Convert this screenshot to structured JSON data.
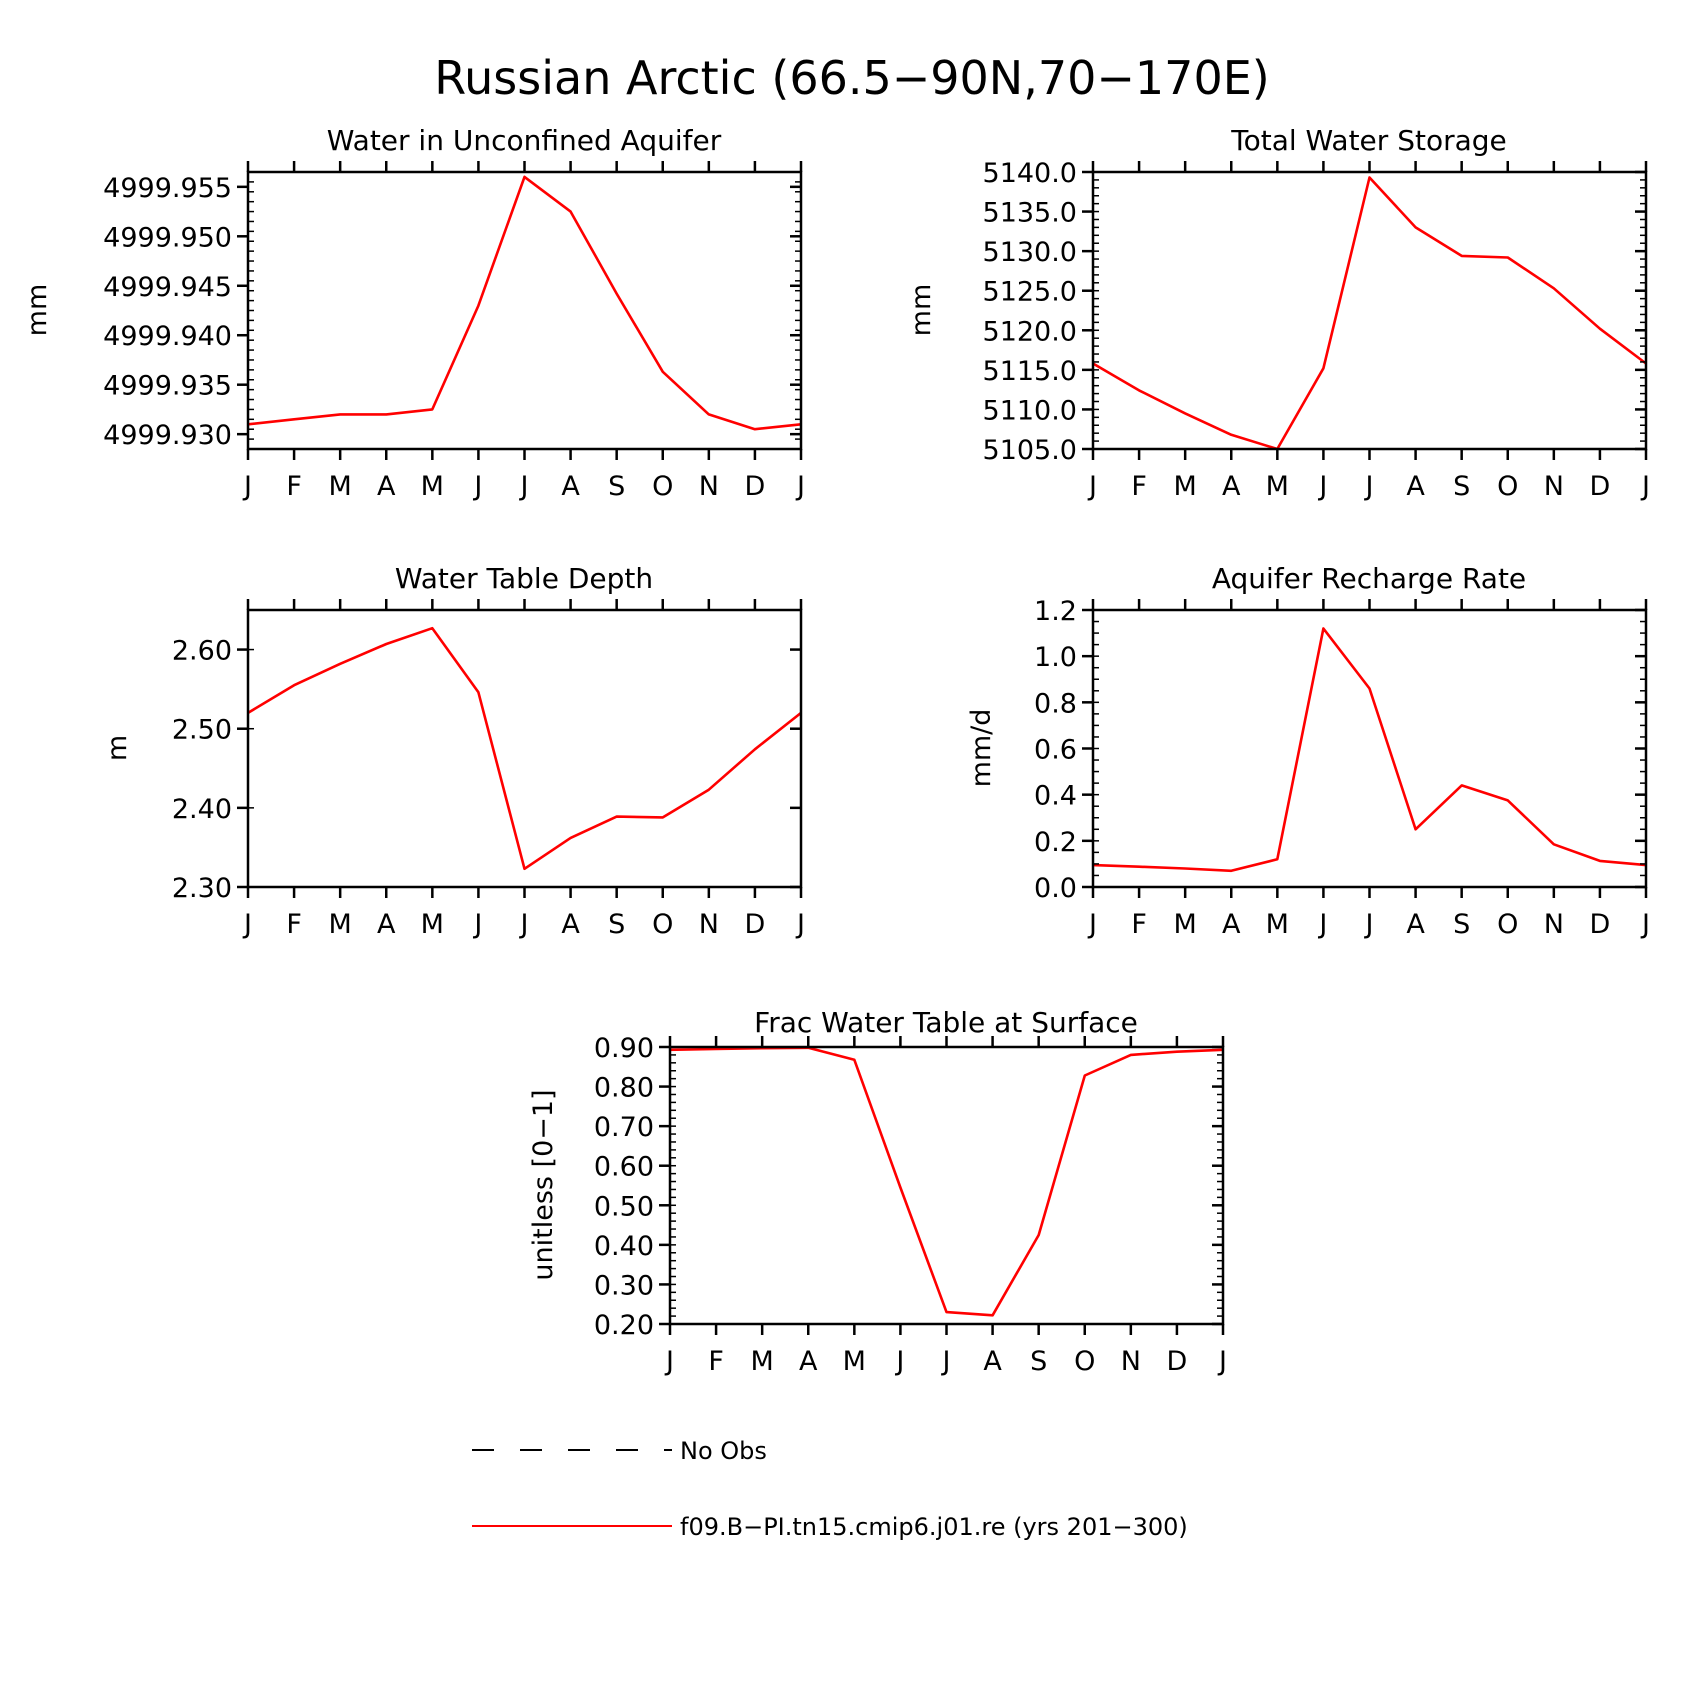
{
  "figure": {
    "title": "Russian Arctic (66.5−90N,70−170E)"
  },
  "months": [
    "J",
    "F",
    "M",
    "A",
    "M",
    "J",
    "J",
    "A",
    "S",
    "O",
    "N",
    "D",
    "J"
  ],
  "colors": {
    "model": "#ff0000",
    "obs": "#000000"
  },
  "chart_data": [
    {
      "type": "line",
      "title": "Water in Unconfined Aquifer",
      "ylabel": "mm",
      "ylim": [
        4999.9285,
        4999.9565
      ],
      "yticks": [
        4999.93,
        4999.935,
        4999.94,
        4999.945,
        4999.95,
        4999.955
      ],
      "ytick_labels": [
        "4999.930",
        "4999.935",
        "4999.940",
        "4999.945",
        "4999.950",
        "4999.955"
      ],
      "yminor_step": 0.001,
      "series": [
        {
          "name": "f09.B−PI.tn15.cmip6.j01.re (yrs 201−300)",
          "values": [
            4999.931,
            4999.9315,
            4999.932,
            4999.932,
            4999.9325,
            4999.943,
            4999.956,
            4999.9525,
            4999.9442,
            4999.9363,
            4999.932,
            4999.9305,
            4999.931
          ]
        }
      ]
    },
    {
      "type": "line",
      "title": "Total Water Storage",
      "ylabel": "mm",
      "ylim": [
        5105.0,
        5140.0
      ],
      "yticks": [
        5105.0,
        5110.0,
        5115.0,
        5120.0,
        5125.0,
        5130.0,
        5135.0,
        5140.0
      ],
      "ytick_labels": [
        "5105.0",
        "5110.0",
        "5115.0",
        "5120.0",
        "5125.0",
        "5130.0",
        "5135.0",
        "5140.0"
      ],
      "yminor_step": 1.0,
      "series": [
        {
          "name": "f09.B−PI.tn15.cmip6.j01.re (yrs 201−300)",
          "values": [
            5115.8,
            5112.4,
            5109.5,
            5106.8,
            5105.0,
            5115.2,
            5139.3,
            5133.0,
            5129.4,
            5129.2,
            5125.3,
            5120.2,
            5115.8
          ]
        }
      ]
    },
    {
      "type": "line",
      "title": "Water Table Depth",
      "ylabel": "m",
      "ylim": [
        2.3,
        2.65
      ],
      "yticks": [
        2.3,
        2.4,
        2.5,
        2.6
      ],
      "ytick_labels": [
        "2.30",
        "2.40",
        "2.50",
        "2.60"
      ],
      "yminor_step": 0.1,
      "series": [
        {
          "name": "f09.B−PI.tn15.cmip6.j01.re (yrs 201−300)",
          "values": [
            2.52,
            2.555,
            2.582,
            2.607,
            2.627,
            2.546,
            2.323,
            2.362,
            2.389,
            2.388,
            2.423,
            2.474,
            2.52
          ]
        }
      ]
    },
    {
      "type": "line",
      "title": "Aquifer Recharge Rate",
      "ylabel": "mm/d",
      "ylim": [
        0.0,
        1.2
      ],
      "yticks": [
        0.0,
        0.2,
        0.4,
        0.6,
        0.8,
        1.0,
        1.2
      ],
      "ytick_labels": [
        "0.0",
        "0.2",
        "0.4",
        "0.6",
        "0.8",
        "1.0",
        "1.2"
      ],
      "yminor_step": 0.05,
      "series": [
        {
          "name": "f09.B−PI.tn15.cmip6.j01.re (yrs 201−300)",
          "values": [
            0.095,
            0.088,
            0.08,
            0.07,
            0.12,
            1.12,
            0.86,
            0.25,
            0.44,
            0.375,
            0.185,
            0.113,
            0.095
          ]
        }
      ]
    },
    {
      "type": "line",
      "title": "Frac Water Table at Surface",
      "ylabel": "unitless [0−1]",
      "ylim": [
        0.2,
        0.9
      ],
      "yticks": [
        0.2,
        0.3,
        0.4,
        0.5,
        0.6,
        0.7,
        0.8,
        0.9
      ],
      "ytick_labels": [
        "0.20",
        "0.30",
        "0.40",
        "0.50",
        "0.60",
        "0.70",
        "0.80",
        "0.90"
      ],
      "yminor_step": 0.02,
      "series": [
        {
          "name": "f09.B−PI.tn15.cmip6.j01.re (yrs 201−300)",
          "values": [
            0.893,
            0.895,
            0.897,
            0.898,
            0.868,
            0.545,
            0.23,
            0.222,
            0.425,
            0.828,
            0.88,
            0.888,
            0.893
          ]
        }
      ]
    }
  ],
  "legend": {
    "obs_label": "No Obs",
    "model_label": "f09.B−PI.tn15.cmip6.j01.re (yrs 201−300)"
  }
}
